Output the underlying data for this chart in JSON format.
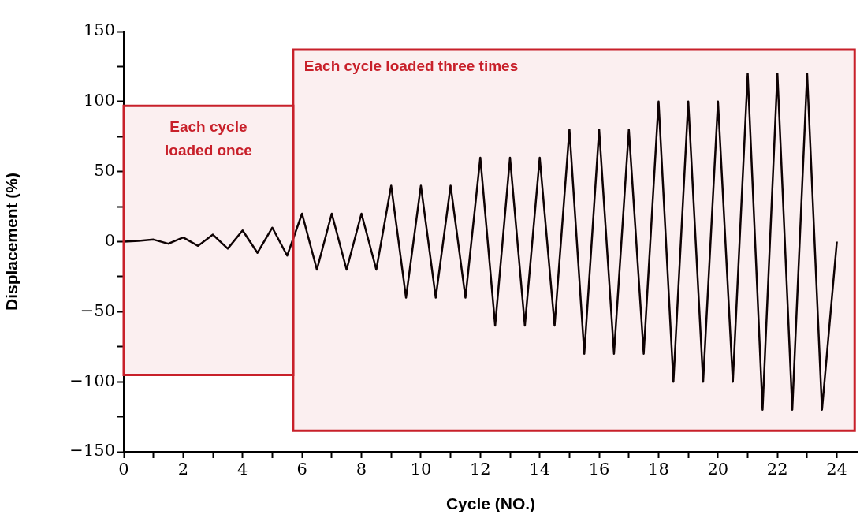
{
  "chart_data": {
    "type": "line",
    "xlabel": "Cycle (NO.)",
    "ylabel": "Displacement (%)",
    "x": [
      0,
      0.5,
      1,
      1.5,
      2,
      2.5,
      3,
      3.5,
      4,
      4.5,
      5,
      5.5,
      6,
      6.5,
      7,
      7.5,
      8,
      8.5,
      9,
      9.5,
      10,
      10.5,
      11,
      11.5,
      12,
      12.5,
      13,
      13.5,
      14,
      14.5,
      15,
      15.5,
      16,
      16.5,
      17,
      17.5,
      18,
      18.5,
      19,
      19.5,
      20,
      20.5,
      21,
      21.5,
      22,
      22.5,
      23,
      23.5,
      24
    ],
    "series": [
      {
        "color": "#000000",
        "values": [
          0,
          0.5,
          1.5,
          -1.5,
          3,
          -3,
          5,
          -5,
          8,
          -8,
          10,
          -10,
          20,
          -20,
          20,
          -20,
          20,
          -20,
          40,
          -40,
          40,
          -40,
          40,
          -40,
          60,
          -60,
          60,
          -60,
          60,
          -60,
          80,
          -80,
          80,
          -80,
          80,
          -80,
          100,
          -100,
          100,
          -100,
          100,
          -100,
          120,
          -120,
          120,
          -120,
          120,
          -120,
          0
        ]
      }
    ],
    "xlim": [
      0,
      24.7
    ],
    "xticks": [
      0,
      {
        "value": 1,
        "label": null
      },
      2,
      {
        "value": 3,
        "label": null
      },
      4,
      {
        "value": 5,
        "label": null
      },
      6,
      {
        "value": 7,
        "label": null
      },
      8,
      {
        "value": 9,
        "label": null
      },
      10,
      {
        "value": 11,
        "label": null
      },
      12,
      {
        "value": 13,
        "label": null
      },
      14,
      {
        "value": 15,
        "label": null
      },
      16,
      {
        "value": 17,
        "label": null
      },
      18,
      {
        "value": 19,
        "label": null
      },
      20,
      {
        "value": 21,
        "label": null
      },
      22,
      {
        "value": 23,
        "label": null
      },
      24
    ],
    "ylim": [
      -150,
      150
    ],
    "yticks": [
      -150,
      {
        "value": -125,
        "label": null
      },
      -100,
      {
        "value": -75,
        "label": null
      },
      -50,
      {
        "value": -25,
        "label": null
      },
      0,
      {
        "value": 25,
        "label": null
      },
      50,
      {
        "value": 75,
        "label": null
      },
      100,
      {
        "value": 125,
        "label": null
      },
      150
    ],
    "bands": [
      {
        "axis": "x",
        "from": 0,
        "to": 5.7,
        "label": "Each cycle\nloaded once",
        "color": "#c8202a"
      },
      {
        "axis": "x",
        "from": 5.7,
        "to": 24.6,
        "label": "Each cycle loaded three times",
        "color": "#c8202a"
      }
    ],
    "grid": false,
    "legend": false,
    "marker": "none",
    "line_style": "solid"
  }
}
